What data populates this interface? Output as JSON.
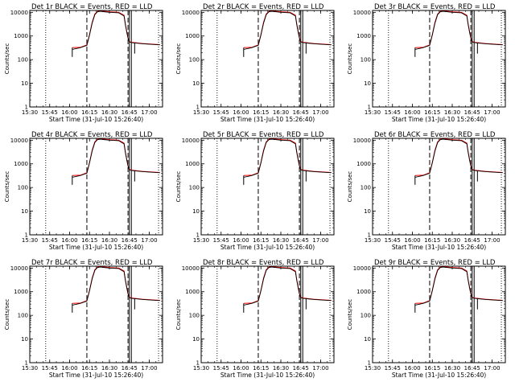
{
  "chart_data": {
    "type": "line",
    "grid": false,
    "x_ticks": [
      "15:30",
      "15:45",
      "16:00",
      "16:15",
      "16:30",
      "16:45",
      "17:00"
    ],
    "xlim": [
      "15:30",
      "17:10"
    ],
    "y_scale": "log",
    "y_ticks": [
      1,
      10,
      100,
      1000,
      10000
    ],
    "y_tick_labels": [
      "1",
      "10",
      "100",
      "1000",
      "10000"
    ],
    "ylim": [
      1,
      12000
    ],
    "markers": {
      "dotted": [
        "15:42",
        "17:07"
      ],
      "dashed": [
        "16:13",
        "16:44"
      ],
      "solid": [
        "16:45",
        "16:46.5"
      ]
    },
    "events": [
      [
        "16:02",
        270
      ],
      [
        "16:08",
        320
      ],
      [
        "16:13",
        400
      ],
      [
        "16:15",
        1100
      ],
      [
        "16:17",
        3500
      ],
      [
        "16:19",
        8000
      ],
      [
        "16:21",
        10500
      ],
      [
        "16:23",
        11000
      ],
      [
        "16:30",
        10000
      ],
      [
        "16:37",
        9500
      ],
      [
        "16:41",
        7000
      ],
      [
        "16:42",
        3000
      ],
      [
        "16:43",
        1500
      ],
      [
        "16:44",
        800
      ],
      [
        "16:45",
        560
      ],
      [
        "16:47",
        520
      ],
      [
        "16:55",
        470
      ],
      [
        "17:08",
        420
      ]
    ],
    "lld": [
      [
        "16:02",
        320
      ],
      [
        "16:08",
        330
      ],
      [
        "16:13",
        420
      ],
      [
        "16:15",
        1150
      ],
      [
        "16:17",
        3800
      ],
      [
        "16:19",
        8500
      ],
      [
        "16:21",
        11000
      ],
      [
        "16:23",
        11500
      ],
      [
        "16:30",
        10500
      ],
      [
        "16:37",
        10000
      ],
      [
        "16:41",
        7500
      ],
      [
        "16:42",
        3200
      ],
      [
        "16:43",
        1600
      ],
      [
        "16:44",
        850
      ],
      [
        "16:45",
        580
      ],
      [
        "16:47",
        540
      ],
      [
        "16:55",
        480
      ],
      [
        "17:08",
        430
      ]
    ],
    "event_vline_start": [
      "16:02",
      130,
      320
    ],
    "event_vline_end": [
      "16:49",
      180,
      520
    ],
    "panels": [
      {
        "title": "Det 1r BLACK = Events, RED = LLD",
        "ylabel": "Counts/sec",
        "xlabel": "Start Time (31-Jul-10 15:26:40)"
      },
      {
        "title": "Det 2r BLACK = Events, RED = LLD",
        "ylabel": "Counts/sec",
        "xlabel": "Start Time (31-Jul-10 15:26:40)"
      },
      {
        "title": "Det 3r BLACK = Events, RED = LLD",
        "ylabel": "Counts/sec",
        "xlabel": "Start Time (31-Jul-10 15:26:40)"
      },
      {
        "title": "Det 4r BLACK = Events, RED = LLD",
        "ylabel": "Counts/sec",
        "xlabel": "Start Time (31-Jul-10 15:26:40)"
      },
      {
        "title": "Det 5r BLACK = Events, RED = LLD",
        "ylabel": "Counts/sec",
        "xlabel": "Start Time (31-Jul-10 15:26:40)"
      },
      {
        "title": "Det 6r BLACK = Events, RED = LLD",
        "ylabel": "Counts/sec",
        "xlabel": "Start Time (31-Jul-10 15:26:40)"
      },
      {
        "title": "Det 7r BLACK = Events, RED = LLD",
        "ylabel": "Counts/sec",
        "xlabel": "Start Time (31-Jul-10 15:26:40)"
      },
      {
        "title": "Det 8r BLACK = Events, RED = LLD",
        "ylabel": "Counts/sec",
        "xlabel": "Start Time (31-Jul-10 15:26:40)"
      },
      {
        "title": "Det 9r BLACK = Events, RED = LLD",
        "ylabel": "Counts/sec",
        "xlabel": "Start Time (31-Jul-10 15:26:40)"
      }
    ],
    "colors": {
      "events": "#000000",
      "lld": "#ff0000",
      "axes": "#000000"
    }
  }
}
